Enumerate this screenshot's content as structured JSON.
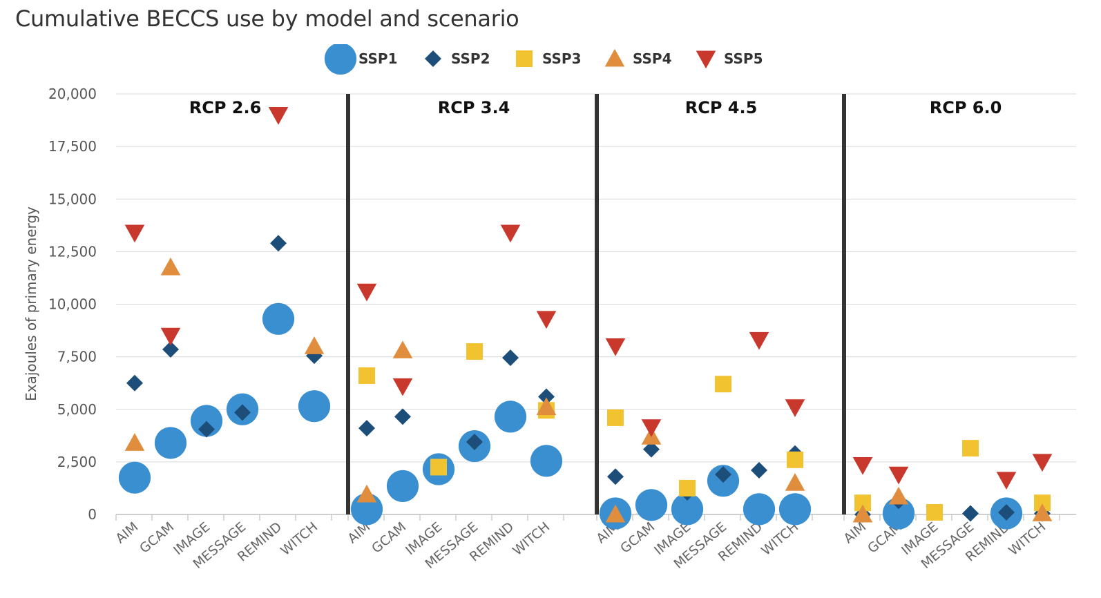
{
  "chart_data": {
    "type": "scatter",
    "title": "Cumulative BECCS use by model and scenario",
    "ylabel": "Exajoules of primary energy",
    "ylim": [
      0,
      20000
    ],
    "yticks": [
      "0",
      "2,500",
      "5,000",
      "7,500",
      "10,000",
      "12,500",
      "15,000",
      "17,500",
      "20,000"
    ],
    "ytick_values": [
      0,
      2500,
      5000,
      7500,
      10000,
      12500,
      15000,
      17500,
      20000
    ],
    "grid": true,
    "legend_position": "top",
    "panels": [
      {
        "name": "RCP 2.6",
        "categories": [
          "AIM",
          "GCAM",
          "IMAGE",
          "MESSAGE",
          "REMIND",
          "WITCH"
        ]
      },
      {
        "name": "RCP 3.4",
        "categories": [
          "AIM",
          "GCAM",
          "IMAGE",
          "MESSAGE",
          "REMIND",
          "WITCH"
        ]
      },
      {
        "name": "RCP 4.5",
        "categories": [
          "AIM",
          "GCAM",
          "IMAGE",
          "MESSAGE",
          "REMIND",
          "WITCH"
        ]
      },
      {
        "name": "RCP 6.0",
        "categories": [
          "AIM",
          "GCAM",
          "IMAGE",
          "MESSAGE",
          "REMIND",
          "WITCH"
        ]
      }
    ],
    "series": [
      {
        "name": "SSP1",
        "marker": "circle",
        "color": "#3A8FD0",
        "values": [
          [
            1750,
            3400,
            4450,
            5000,
            9300,
            5150
          ],
          [
            250,
            1350,
            2150,
            3250,
            4650,
            2550
          ],
          [
            50,
            450,
            250,
            1600,
            250,
            250
          ],
          [
            null,
            50,
            null,
            null,
            50,
            null
          ]
        ]
      },
      {
        "name": "SSP2",
        "marker": "diamond",
        "color": "#1D4E79",
        "values": [
          [
            6250,
            7850,
            4050,
            4850,
            12900,
            7550
          ],
          [
            4100,
            4650,
            null,
            3450,
            7450,
            5600
          ],
          [
            1800,
            3100,
            1050,
            1900,
            2100,
            2900
          ],
          [
            0,
            650,
            null,
            50,
            100,
            50
          ]
        ]
      },
      {
        "name": "SSP3",
        "marker": "square",
        "color": "#F2C331",
        "values": [
          [
            null,
            null,
            null,
            null,
            null,
            null
          ],
          [
            6600,
            null,
            2250,
            7750,
            null,
            4950
          ],
          [
            4600,
            null,
            1250,
            6200,
            null,
            2600
          ],
          [
            550,
            null,
            100,
            3150,
            null,
            550
          ]
        ]
      },
      {
        "name": "SSP4",
        "marker": "triangle-up",
        "color": "#E08E3E",
        "values": [
          [
            3400,
            11750,
            null,
            null,
            null,
            8000
          ],
          [
            950,
            7800,
            null,
            null,
            null,
            5100
          ],
          [
            0,
            3700,
            null,
            null,
            null,
            1500
          ],
          [
            0,
            850,
            null,
            null,
            null,
            50
          ]
        ]
      },
      {
        "name": "SSP5",
        "marker": "triangle-down",
        "color": "#C8382C",
        "values": [
          [
            13400,
            8500,
            null,
            null,
            19000,
            null
          ],
          [
            10600,
            6100,
            null,
            null,
            13400,
            9300
          ],
          [
            8000,
            4150,
            null,
            null,
            8300,
            5100
          ],
          [
            2350,
            1900,
            null,
            null,
            1650,
            2500
          ]
        ]
      }
    ]
  }
}
